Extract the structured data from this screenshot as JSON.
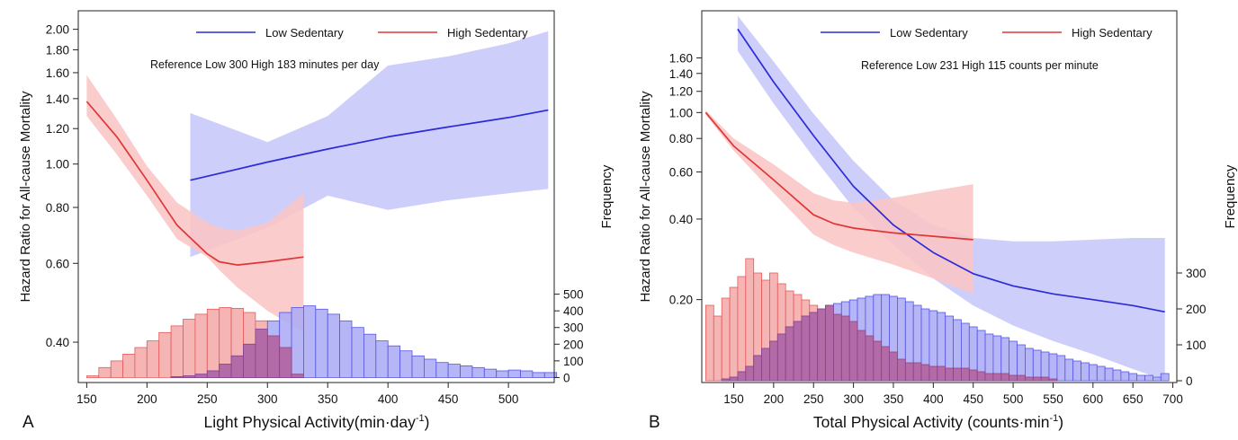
{
  "chart_data": [
    {
      "panel_letter": "A",
      "type": "line",
      "xlabel_base": "Light Physical Activity(min·day",
      "xlabel_sup": "-1",
      "xlabel_end": ")",
      "ylabel": "Hazard Ratio for All-cause Mortality",
      "y2label": "Frequency",
      "annotation": "Reference Low 300 High 183 minutes per day",
      "xlim": [
        143,
        538
      ],
      "x_ticks": [
        150,
        200,
        250,
        300,
        350,
        400,
        450,
        500
      ],
      "y_scale": "log",
      "ylim": [
        0.325,
        2.2
      ],
      "y_ticks": [
        0.4,
        0.6,
        0.8,
        1.0,
        1.2,
        1.4,
        1.6,
        1.8,
        2.0
      ],
      "y_tick_labels": [
        "0.40",
        "0.60",
        "0.80",
        "1.00",
        "1.20",
        "1.40",
        "1.60",
        "1.80",
        "2.00"
      ],
      "y2lim": [
        -30,
        2200
      ],
      "y2_ticks": [
        0,
        100,
        200,
        300,
        400,
        500
      ],
      "colors": {
        "low": "#2b2bd8",
        "high": "#e03535",
        "low_band": "#c9c9fb",
        "high_band": "#f9c6c6",
        "low_bar": "#a9a9f6",
        "high_bar": "#f5a8a8",
        "low_bar_edge": "#5555e6",
        "high_bar_edge": "#e45c5c",
        "overlap_bar": "#b25f9b"
      },
      "series": [
        {
          "name": "Low Sedentary",
          "color": "#2b2bd8",
          "x": [
            236,
            300,
            350,
            400,
            450,
            500,
            533
          ],
          "y": [
            0.92,
            1.01,
            1.08,
            1.15,
            1.21,
            1.27,
            1.32
          ],
          "lower": [
            0.62,
            0.72,
            0.85,
            0.79,
            0.83,
            0.86,
            0.88
          ],
          "upper": [
            1.3,
            1.12,
            1.28,
            1.66,
            1.74,
            1.86,
            1.98
          ]
        },
        {
          "name": "High Sedentary",
          "color": "#e03535",
          "x": [
            150,
            175,
            200,
            225,
            250,
            260,
            275,
            300,
            330
          ],
          "y": [
            1.38,
            1.15,
            0.92,
            0.73,
            0.63,
            0.605,
            0.595,
            0.605,
            0.62
          ],
          "lower": [
            1.28,
            1.05,
            0.85,
            0.68,
            0.62,
            0.58,
            0.53,
            0.47,
            0.42
          ],
          "upper": [
            1.58,
            1.26,
            0.99,
            0.82,
            0.74,
            0.72,
            0.71,
            0.74,
            0.86
          ]
        }
      ],
      "histograms": [
        {
          "name": "High Sedentary",
          "bin_width": 10,
          "bin_starts": [
            150,
            160,
            170,
            180,
            190,
            200,
            210,
            220,
            230,
            240,
            250,
            260,
            270,
            280,
            290,
            300,
            310,
            320
          ],
          "counts": [
            10,
            60,
            100,
            140,
            180,
            220,
            270,
            310,
            350,
            380,
            410,
            420,
            415,
            390,
            340,
            250,
            180,
            20
          ]
        },
        {
          "name": "Low Sedentary",
          "bin_width": 10,
          "bin_starts": [
            220,
            230,
            240,
            250,
            260,
            270,
            280,
            290,
            300,
            310,
            320,
            330,
            340,
            350,
            360,
            370,
            380,
            390,
            400,
            410,
            420,
            430,
            440,
            450,
            460,
            470,
            480,
            490,
            500,
            510,
            520,
            530
          ],
          "counts": [
            5,
            10,
            20,
            40,
            80,
            130,
            200,
            290,
            340,
            390,
            420,
            430,
            410,
            380,
            340,
            300,
            260,
            220,
            190,
            160,
            130,
            110,
            90,
            80,
            70,
            60,
            50,
            40,
            45,
            40,
            30,
            30
          ]
        }
      ],
      "legend": {
        "low": "Low Sedentary",
        "high": "High Sedentary",
        "placement": "top"
      }
    },
    {
      "panel_letter": "B",
      "type": "line",
      "xlabel_base": "Total Physical Activity (counts·min",
      "xlabel_sup": "-1",
      "xlabel_end": ")",
      "ylabel": "Hazard Ratio for All-cause Mortality",
      "y2label": "Frequency",
      "annotation": "Reference Low 231 High 115 counts per minute",
      "xlim": [
        110,
        705
      ],
      "x_ticks": [
        150,
        200,
        250,
        300,
        350,
        400,
        450,
        500,
        550,
        600,
        650,
        700
      ],
      "y_scale": "log",
      "ylim": [
        0.098,
        2.4
      ],
      "y_ticks": [
        0.2,
        0.4,
        0.6,
        0.8,
        1.0,
        1.2,
        1.4,
        1.6
      ],
      "y_tick_labels": [
        "0.20",
        "0.40",
        "0.60",
        "0.80",
        "1.00",
        "1.20",
        "1.40",
        "1.60"
      ],
      "y2lim": [
        -5,
        1030
      ],
      "y2_ticks": [
        0,
        100,
        200,
        300
      ],
      "colors": {
        "low": "#2b2bd8",
        "high": "#e03535",
        "low_band": "#c9c9fb",
        "high_band": "#f9c6c6",
        "low_bar": "#a9a9f6",
        "high_bar": "#f5a8a8",
        "low_bar_edge": "#5555e6",
        "high_bar_edge": "#e45c5c",
        "overlap_bar": "#b25f9b"
      },
      "series": [
        {
          "name": "Low Sedentary",
          "color": "#2b2bd8",
          "x": [
            155,
            200,
            250,
            300,
            350,
            400,
            450,
            500,
            550,
            600,
            650,
            690
          ],
          "y": [
            2.05,
            1.3,
            0.82,
            0.53,
            0.38,
            0.3,
            0.25,
            0.225,
            0.21,
            0.2,
            0.19,
            0.18
          ],
          "lower": [
            1.7,
            1.08,
            0.68,
            0.44,
            0.32,
            0.24,
            0.19,
            0.16,
            0.14,
            0.125,
            0.11,
            0.1
          ],
          "upper": [
            2.3,
            1.55,
            0.99,
            0.66,
            0.47,
            0.38,
            0.34,
            0.33,
            0.33,
            0.335,
            0.34,
            0.34
          ]
        },
        {
          "name": "High Sedentary",
          "color": "#e03535",
          "x": [
            115,
            150,
            200,
            250,
            275,
            300,
            350,
            400,
            450
          ],
          "y": [
            1.0,
            0.75,
            0.56,
            0.415,
            0.385,
            0.37,
            0.355,
            0.345,
            0.335
          ],
          "lower": [
            0.98,
            0.72,
            0.5,
            0.35,
            0.32,
            0.3,
            0.27,
            0.24,
            0.21
          ],
          "upper": [
            1.02,
            0.8,
            0.64,
            0.5,
            0.47,
            0.46,
            0.48,
            0.51,
            0.54
          ]
        }
      ],
      "histograms": [
        {
          "name": "High Sedentary",
          "bin_width": 10,
          "bin_starts": [
            115,
            125,
            135,
            145,
            155,
            165,
            175,
            185,
            195,
            205,
            215,
            225,
            235,
            245,
            255,
            265,
            275,
            285,
            295,
            305,
            315,
            325,
            335,
            345,
            355,
            365,
            375,
            385,
            395,
            405,
            415,
            425,
            435,
            445,
            455,
            465,
            475,
            485,
            495,
            505,
            515,
            525,
            535,
            545
          ],
          "counts": [
            210,
            180,
            230,
            260,
            290,
            340,
            300,
            280,
            300,
            270,
            250,
            240,
            225,
            210,
            200,
            210,
            185,
            180,
            165,
            140,
            125,
            110,
            95,
            80,
            60,
            50,
            50,
            45,
            40,
            40,
            35,
            35,
            35,
            30,
            25,
            20,
            20,
            20,
            15,
            15,
            10,
            10,
            10,
            5
          ]
        },
        {
          "name": "Low Sedentary",
          "bin_width": 10,
          "bin_starts": [
            135,
            145,
            155,
            165,
            175,
            185,
            195,
            205,
            215,
            225,
            235,
            245,
            255,
            265,
            275,
            285,
            295,
            305,
            315,
            325,
            335,
            345,
            355,
            365,
            375,
            385,
            395,
            405,
            415,
            425,
            435,
            445,
            455,
            465,
            475,
            485,
            495,
            505,
            515,
            525,
            535,
            545,
            555,
            565,
            575,
            585,
            595,
            605,
            615,
            625,
            635,
            645,
            655,
            665,
            675,
            685
          ],
          "counts": [
            5,
            10,
            25,
            40,
            70,
            90,
            110,
            130,
            150,
            165,
            180,
            190,
            200,
            210,
            215,
            220,
            225,
            230,
            235,
            240,
            240,
            235,
            230,
            220,
            210,
            200,
            195,
            190,
            180,
            170,
            160,
            150,
            140,
            130,
            125,
            120,
            110,
            100,
            90,
            85,
            80,
            75,
            70,
            60,
            55,
            50,
            45,
            40,
            35,
            30,
            25,
            20,
            15,
            15,
            10,
            20
          ]
        }
      ],
      "legend": {
        "low": "Low Sedentary",
        "high": "High Sedentary",
        "placement": "top"
      }
    }
  ]
}
